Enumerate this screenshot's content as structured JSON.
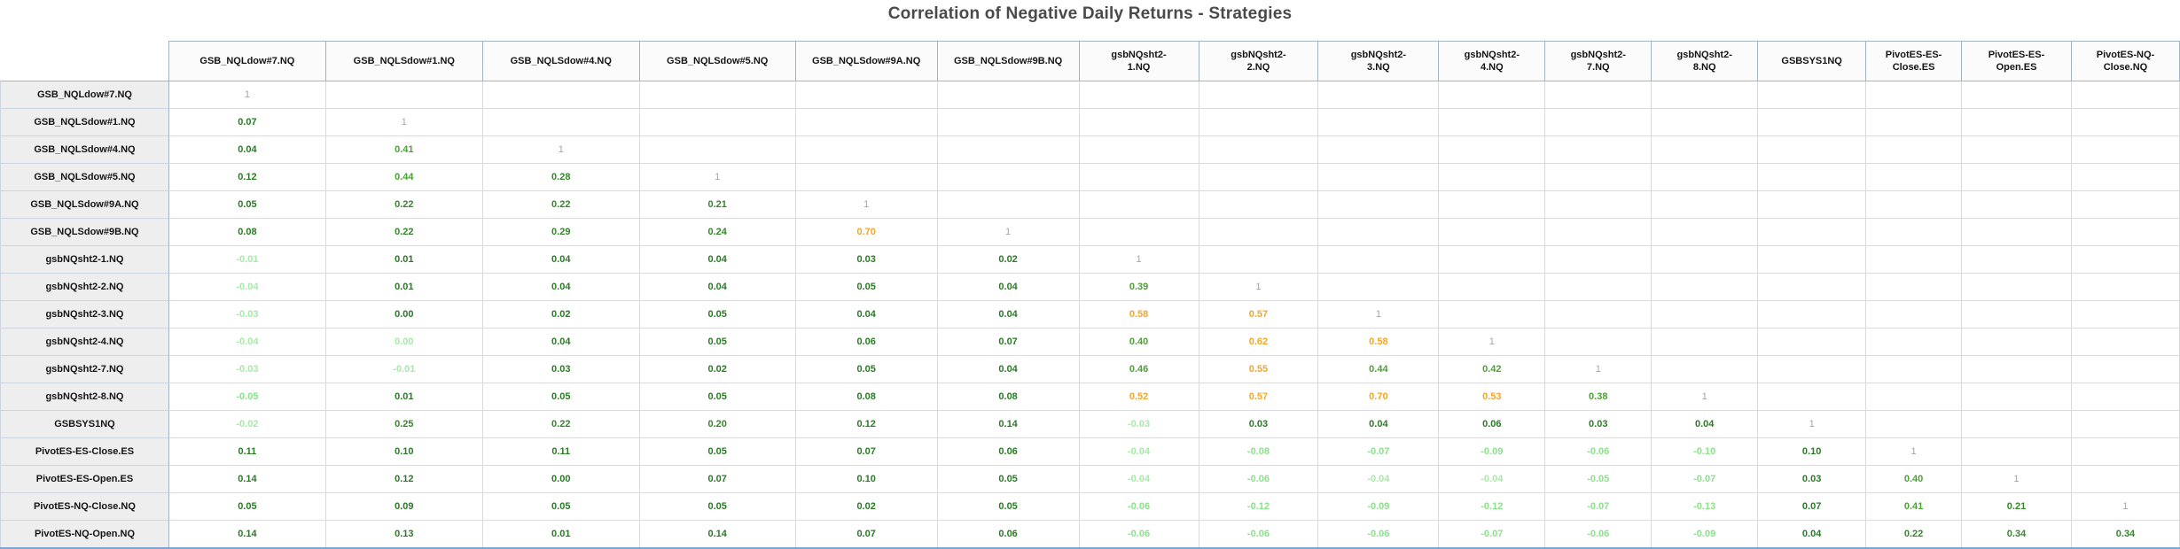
{
  "title": "Correlation of Negative Daily Returns - Strategies",
  "colors": {
    "one": "#a3a3ab",
    "neg1": "#a5eba5",
    "neg2": "#8ae28a",
    "pos1": "#2a7a26",
    "pos2": "#35872a",
    "mid": "#4ba133",
    "high": "#f5a52a",
    "title_text": "#4a4a4a",
    "header_text": "#151515",
    "row_header_bg": "#eeeeee",
    "grid_border": "#dadada",
    "frame_border": "#9fb4c9",
    "bottom_border": "#7ea6cf"
  },
  "chart_data": {
    "type": "table",
    "subtype": "correlation-matrix-lower-triangular",
    "title": "Correlation of Negative Daily Returns - Strategies",
    "columns": [
      "GSB_NQLdow#7.NQ",
      "GSB_NQLSdow#1.NQ",
      "GSB_NQLSdow#4.NQ",
      "GSB_NQLSdow#5.NQ",
      "GSB_NQLSdow#9A.NQ",
      "GSB_NQLSdow#9B.NQ",
      "gsbNQsht2-\n1.NQ",
      "gsbNQsht2-\n2.NQ",
      "gsbNQsht2-\n3.NQ",
      "gsbNQsht2-\n4.NQ",
      "gsbNQsht2-\n7.NQ",
      "gsbNQsht2-\n8.NQ",
      "GSBSYS1NQ",
      "PivotES-ES-\nClose.ES",
      "PivotES-ES-\nOpen.ES",
      "PivotES-NQ-\nClose.NQ"
    ],
    "rows": [
      {
        "label": "GSB_NQLdow#7.NQ",
        "values": [
          "1"
        ]
      },
      {
        "label": "GSB_NQLSdow#1.NQ",
        "values": [
          "0.07",
          "1"
        ]
      },
      {
        "label": "GSB_NQLSdow#4.NQ",
        "values": [
          "0.04",
          "0.41",
          "1"
        ]
      },
      {
        "label": "GSB_NQLSdow#5.NQ",
        "values": [
          "0.12",
          "0.44",
          "0.28",
          "1"
        ]
      },
      {
        "label": "GSB_NQLSdow#9A.NQ",
        "values": [
          "0.05",
          "0.22",
          "0.22",
          "0.21",
          "1"
        ]
      },
      {
        "label": "GSB_NQLSdow#9B.NQ",
        "values": [
          "0.08",
          "0.22",
          "0.29",
          "0.24",
          "0.70",
          "1"
        ]
      },
      {
        "label": "gsbNQsht2-1.NQ",
        "values": [
          "-0.01",
          "0.01",
          "0.04",
          "0.04",
          "0.03",
          "0.02",
          "1"
        ]
      },
      {
        "label": "gsbNQsht2-2.NQ",
        "values": [
          "-0.04",
          "0.01",
          "0.04",
          "0.04",
          "0.05",
          "0.04",
          "0.39",
          "1"
        ]
      },
      {
        "label": "gsbNQsht2-3.NQ",
        "values": [
          "-0.03",
          "0.00",
          "0.02",
          "0.05",
          "0.04",
          "0.04",
          "0.58",
          "0.57",
          "1"
        ]
      },
      {
        "label": "gsbNQsht2-4.NQ",
        "values": [
          "-0.04",
          "-0.00",
          "0.04",
          "0.05",
          "0.06",
          "0.07",
          "0.40",
          "0.62",
          "0.58",
          "1"
        ]
      },
      {
        "label": "gsbNQsht2-7.NQ",
        "values": [
          "-0.03",
          "-0.01",
          "0.03",
          "0.02",
          "0.05",
          "0.04",
          "0.46",
          "0.55",
          "0.44",
          "0.42",
          "1"
        ]
      },
      {
        "label": "gsbNQsht2-8.NQ",
        "values": [
          "-0.05",
          "0.01",
          "0.05",
          "0.05",
          "0.08",
          "0.08",
          "0.52",
          "0.57",
          "0.70",
          "0.53",
          "0.38",
          "1"
        ]
      },
      {
        "label": "GSBSYS1NQ",
        "values": [
          "-0.02",
          "0.25",
          "0.22",
          "0.20",
          "0.12",
          "0.14",
          "-0.03",
          "0.03",
          "0.04",
          "0.06",
          "0.03",
          "0.04",
          "1"
        ]
      },
      {
        "label": "PivotES-ES-Close.ES",
        "values": [
          "0.11",
          "0.10",
          "0.11",
          "0.05",
          "0.07",
          "0.06",
          "-0.04",
          "-0.08",
          "-0.07",
          "-0.09",
          "-0.06",
          "-0.10",
          "0.10",
          "1"
        ]
      },
      {
        "label": "PivotES-ES-Open.ES",
        "values": [
          "0.14",
          "0.12",
          "0.00",
          "0.07",
          "0.10",
          "0.05",
          "-0.04",
          "-0.06",
          "-0.04",
          "-0.04",
          "-0.05",
          "-0.07",
          "0.03",
          "0.40",
          "1"
        ]
      },
      {
        "label": "PivotES-NQ-Close.NQ",
        "values": [
          "0.05",
          "0.09",
          "0.05",
          "0.05",
          "0.02",
          "0.05",
          "-0.06",
          "-0.12",
          "-0.09",
          "-0.12",
          "-0.07",
          "-0.13",
          "0.07",
          "0.41",
          "0.21",
          "1"
        ]
      },
      {
        "label": "PivotES-NQ-Open.NQ",
        "values": [
          "0.14",
          "0.13",
          "0.01",
          "0.14",
          "0.07",
          "0.06",
          "-0.06",
          "-0.06",
          "-0.06",
          "-0.07",
          "-0.06",
          "-0.09",
          "0.04",
          "0.22",
          "0.34",
          "0.34"
        ]
      }
    ],
    "value_color_rules": {
      "diagonal_1": "gray",
      "negative": "pale-green",
      "0_to_0.37": "dark-green",
      "0.38_to_0.49": "medium-green",
      "0.50_and_up": "orange"
    }
  }
}
